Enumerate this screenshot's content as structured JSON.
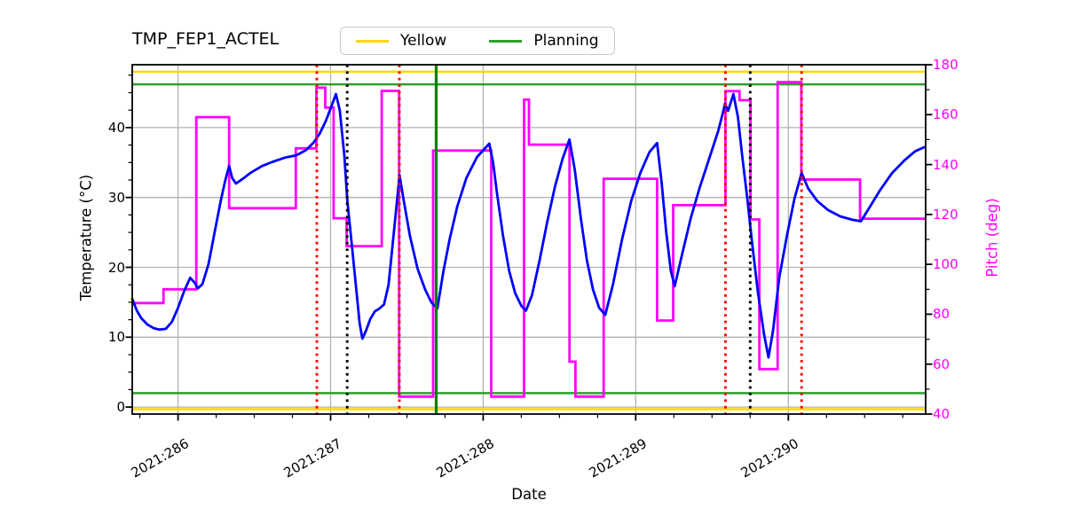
{
  "title": "TMP_FEP1_ACTEL",
  "axes": {
    "xlabel": "Date",
    "ylabel_left": "Temperature (°C)",
    "ylabel_right": "Pitch (deg)"
  },
  "legend": {
    "items": [
      {
        "label": "Yellow",
        "color": "#ffd700"
      },
      {
        "label": "Planning",
        "color": "#2ca02c"
      }
    ]
  },
  "colors": {
    "temperature_line": "#0000ff",
    "pitch_line": "#ff00ff",
    "yellow_limit": "#ffd700",
    "planning_limit": "#2ca02c",
    "planning_event_line": "#008000",
    "red_event_line": "#ff0000",
    "black_event_line": "#000000",
    "grid": "#b2b2b2",
    "right_axis_text": "#ff00ff"
  },
  "chart_data": {
    "type": "line",
    "title": "TMP_FEP1_ACTEL",
    "xlabel": "Date",
    "ylabel_left": "Temperature (°C)",
    "ylabel_right": "Pitch (deg)",
    "grid": true,
    "legend_position": "top-center",
    "xlim": [
      285.7,
      290.9
    ],
    "ylim_left": [
      -1,
      49
    ],
    "ylim_right": [
      40,
      180
    ],
    "x_ticks": [
      {
        "value": 286,
        "label": "2021:286"
      },
      {
        "value": 287,
        "label": "2021:287"
      },
      {
        "value": 288,
        "label": "2021:288"
      },
      {
        "value": 289,
        "label": "2021:289"
      },
      {
        "value": 290,
        "label": "2021:290"
      }
    ],
    "y_ticks_left": [
      0,
      10,
      20,
      30,
      40
    ],
    "y_ticks_right": [
      40,
      60,
      80,
      100,
      120,
      140,
      160,
      180
    ],
    "minor_tick_intervals": {
      "x": 0.25,
      "left": 2.5,
      "right": 10
    },
    "series": [
      {
        "name": "Temperature",
        "axis": "left",
        "style": "line",
        "color": "#0000ff",
        "points": [
          [
            285.7,
            15.5
          ],
          [
            285.73,
            13.8
          ],
          [
            285.76,
            12.7
          ],
          [
            285.8,
            11.8
          ],
          [
            285.84,
            11.3
          ],
          [
            285.88,
            11.1
          ],
          [
            285.92,
            11.2
          ],
          [
            285.96,
            12.2
          ],
          [
            286.0,
            14.2
          ],
          [
            286.04,
            16.6
          ],
          [
            286.08,
            18.5
          ],
          [
            286.11,
            17.8
          ],
          [
            286.13,
            17.0
          ],
          [
            286.16,
            17.6
          ],
          [
            286.2,
            20.5
          ],
          [
            286.24,
            25.0
          ],
          [
            286.28,
            29.5
          ],
          [
            286.31,
            32.5
          ],
          [
            286.335,
            34.5
          ],
          [
            286.355,
            32.8
          ],
          [
            286.38,
            32.0
          ],
          [
            286.42,
            32.6
          ],
          [
            286.48,
            33.6
          ],
          [
            286.55,
            34.5
          ],
          [
            286.62,
            35.1
          ],
          [
            286.7,
            35.7
          ],
          [
            286.77,
            36.0
          ],
          [
            286.79,
            36.2
          ],
          [
            286.84,
            36.8
          ],
          [
            286.89,
            37.9
          ],
          [
            286.93,
            39.2
          ],
          [
            286.97,
            41.0
          ],
          [
            287.01,
            43.3
          ],
          [
            287.035,
            44.8
          ],
          [
            287.06,
            42.5
          ],
          [
            287.09,
            36.0
          ],
          [
            287.11,
            29.5
          ],
          [
            287.14,
            23.0
          ],
          [
            287.17,
            16.5
          ],
          [
            287.19,
            12.0
          ],
          [
            287.208,
            9.8
          ],
          [
            287.23,
            10.8
          ],
          [
            287.26,
            12.6
          ],
          [
            287.29,
            13.7
          ],
          [
            287.32,
            14.1
          ],
          [
            287.35,
            14.7
          ],
          [
            287.38,
            17.5
          ],
          [
            287.41,
            24.0
          ],
          [
            287.44,
            30.5
          ],
          [
            287.452,
            33.2
          ],
          [
            287.48,
            29.5
          ],
          [
            287.52,
            24.5
          ],
          [
            287.57,
            19.8
          ],
          [
            287.62,
            16.8
          ],
          [
            287.66,
            15.0
          ],
          [
            287.7,
            14.1
          ],
          [
            287.74,
            19.5
          ],
          [
            287.78,
            24.0
          ],
          [
            287.83,
            28.7
          ],
          [
            287.89,
            32.8
          ],
          [
            287.96,
            35.8
          ],
          [
            288.04,
            37.7
          ],
          [
            288.065,
            35.0
          ],
          [
            288.09,
            30.7
          ],
          [
            288.13,
            24.5
          ],
          [
            288.17,
            19.5
          ],
          [
            288.21,
            16.3
          ],
          [
            288.25,
            14.5
          ],
          [
            288.28,
            13.8
          ],
          [
            288.32,
            16.0
          ],
          [
            288.37,
            21.0
          ],
          [
            288.42,
            26.5
          ],
          [
            288.47,
            31.5
          ],
          [
            288.52,
            35.5
          ],
          [
            288.565,
            38.3
          ],
          [
            288.6,
            34.0
          ],
          [
            288.64,
            27.0
          ],
          [
            288.68,
            21.0
          ],
          [
            288.72,
            16.8
          ],
          [
            288.76,
            14.2
          ],
          [
            288.8,
            13.2
          ],
          [
            288.85,
            17.5
          ],
          [
            288.91,
            24.0
          ],
          [
            288.97,
            29.5
          ],
          [
            289.03,
            33.5
          ],
          [
            289.09,
            36.5
          ],
          [
            289.14,
            37.8
          ],
          [
            289.17,
            32.0
          ],
          [
            289.2,
            25.0
          ],
          [
            289.23,
            19.5
          ],
          [
            289.255,
            17.3
          ],
          [
            289.3,
            21.5
          ],
          [
            289.36,
            27.0
          ],
          [
            289.42,
            31.5
          ],
          [
            289.48,
            35.5
          ],
          [
            289.54,
            39.5
          ],
          [
            289.57,
            42.0
          ],
          [
            289.585,
            43.4
          ],
          [
            289.605,
            42.4
          ],
          [
            289.64,
            44.8
          ],
          [
            289.67,
            41.5
          ],
          [
            289.7,
            35.5
          ],
          [
            289.73,
            30.0
          ],
          [
            289.76,
            24.0
          ],
          [
            289.8,
            16.5
          ],
          [
            289.84,
            10.5
          ],
          [
            289.87,
            7.1
          ],
          [
            289.9,
            11.0
          ],
          [
            289.94,
            18.5
          ],
          [
            289.99,
            24.5
          ],
          [
            290.04,
            29.8
          ],
          [
            290.087,
            33.5
          ],
          [
            290.13,
            31.3
          ],
          [
            290.19,
            29.5
          ],
          [
            290.26,
            28.2
          ],
          [
            290.34,
            27.3
          ],
          [
            290.42,
            26.8
          ],
          [
            290.476,
            26.6
          ],
          [
            290.53,
            28.5
          ],
          [
            290.6,
            31.0
          ],
          [
            290.68,
            33.5
          ],
          [
            290.76,
            35.3
          ],
          [
            290.83,
            36.6
          ],
          [
            290.89,
            37.2
          ]
        ]
      },
      {
        "name": "Pitch",
        "axis": "right",
        "style": "step",
        "color": "#ff00ff",
        "x_end": 290.9,
        "points": [
          [
            285.7,
            84.5
          ],
          [
            285.905,
            90.0
          ],
          [
            286.12,
            159.0
          ],
          [
            286.335,
            122.5
          ],
          [
            286.772,
            146.5
          ],
          [
            286.907,
            170.8
          ],
          [
            286.965,
            162.8
          ],
          [
            287.02,
            118.5
          ],
          [
            287.105,
            107.3
          ],
          [
            287.335,
            169.5
          ],
          [
            287.449,
            47.0
          ],
          [
            287.672,
            145.6
          ],
          [
            288.053,
            47.0
          ],
          [
            288.268,
            166.0
          ],
          [
            288.3,
            148.0
          ],
          [
            288.566,
            61.0
          ],
          [
            288.605,
            47.0
          ],
          [
            288.79,
            134.3
          ],
          [
            289.14,
            77.5
          ],
          [
            289.245,
            123.7
          ],
          [
            289.588,
            169.4
          ],
          [
            289.68,
            165.8
          ],
          [
            289.752,
            118.0
          ],
          [
            289.81,
            58.0
          ],
          [
            289.93,
            173.0
          ],
          [
            290.085,
            134.0
          ],
          [
            290.47,
            118.3
          ]
        ]
      }
    ],
    "limit_lines": [
      {
        "name": "Yellow",
        "axis": "left",
        "color": "#ffd700",
        "values": [
          48.0,
          -0.3
        ]
      },
      {
        "name": "Planning",
        "axis": "left",
        "color": "#2ca02c",
        "values": [
          46.2,
          2.0
        ]
      }
    ],
    "event_lines": [
      {
        "name": "red-dotted",
        "color": "#ff0000",
        "style": "dotted",
        "x": [
          286.91,
          287.451,
          289.588,
          290.087
        ]
      },
      {
        "name": "black-dotted",
        "color": "#000000",
        "style": "dotted",
        "x": [
          287.109,
          289.75
        ]
      },
      {
        "name": "green-solid",
        "color": "#008000",
        "style": "solid",
        "x": [
          287.692
        ]
      }
    ]
  }
}
